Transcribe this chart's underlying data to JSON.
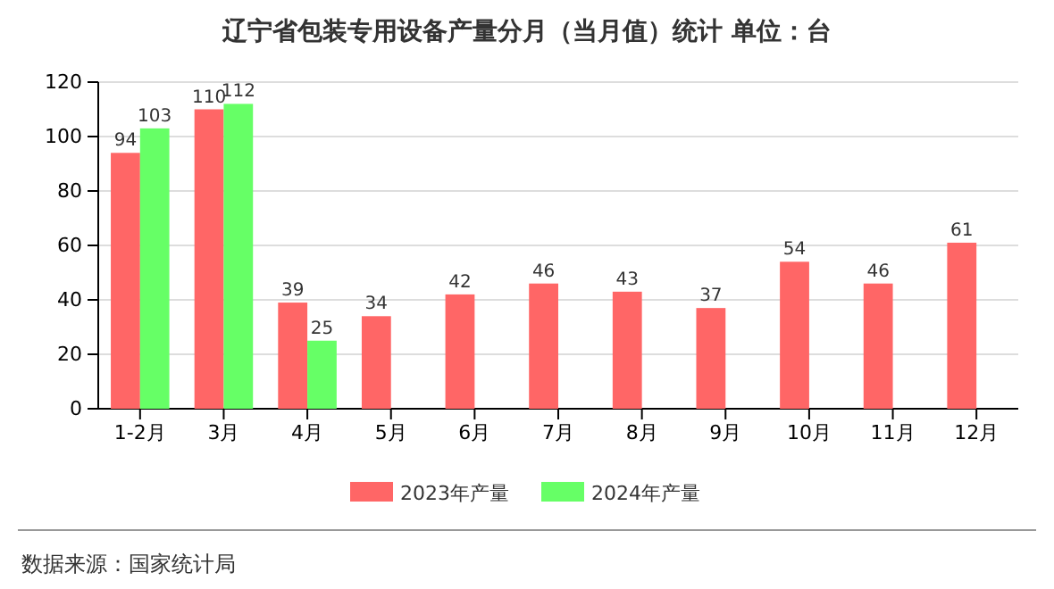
{
  "chart_data": {
    "type": "bar",
    "title": "辽宁省包装专用设备产量分月（当月值）统计  单位：台",
    "categories": [
      "1-2月",
      "3月",
      "4月",
      "5月",
      "6月",
      "7月",
      "8月",
      "9月",
      "10月",
      "11月",
      "12月"
    ],
    "series": [
      {
        "name": "2023年产量",
        "color": "#ff6666",
        "values": [
          94,
          110,
          39,
          34,
          42,
          46,
          43,
          37,
          54,
          46,
          61
        ]
      },
      {
        "name": "2024年产量",
        "color": "#66ff66",
        "values": [
          103,
          112,
          25,
          null,
          null,
          null,
          null,
          null,
          null,
          null,
          null
        ]
      }
    ],
    "ylim": [
      0,
      120
    ],
    "yticks": [
      0,
      20,
      40,
      60,
      80,
      100,
      120
    ],
    "grid": "y",
    "legend": "bottom",
    "data_labels": true,
    "annotations": [
      "数据来源：国家统计局"
    ]
  }
}
